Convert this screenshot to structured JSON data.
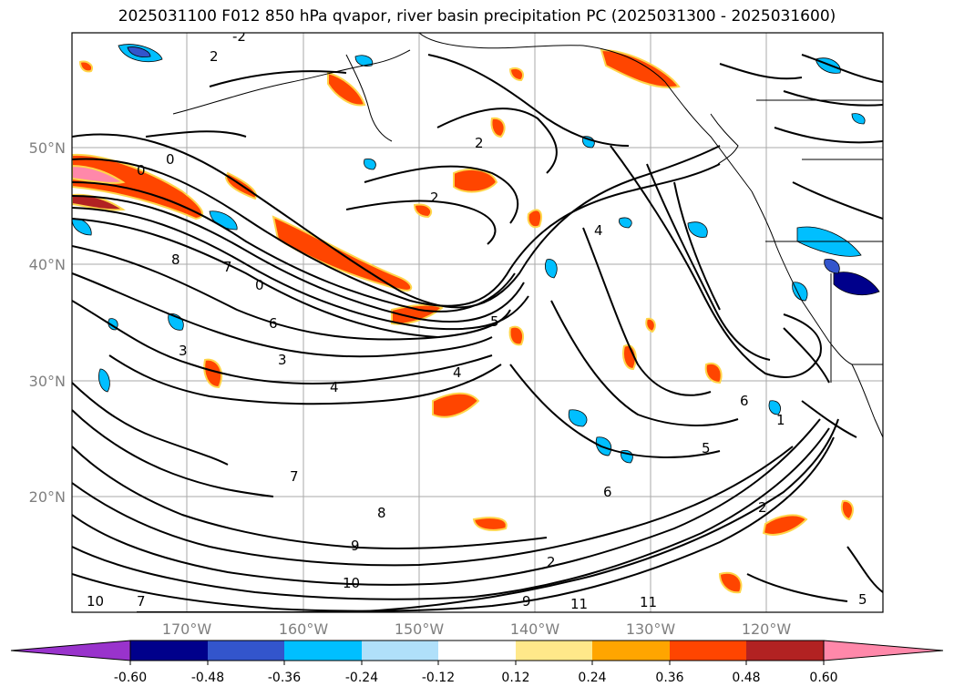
{
  "title": "2025031100 F012 850 hPa qvapor, river basin precipitation PC (2025031300 - 2025031600)",
  "map": {
    "lat_labels": [
      "50°N",
      "40°N",
      "30°N",
      "20°N"
    ],
    "lon_labels": [
      "170°W",
      "160°W",
      "150°W",
      "140°W",
      "130°W",
      "120°W"
    ],
    "contour_labels": [
      "0",
      "2",
      "0",
      "-2",
      "2",
      "4",
      "8",
      "7",
      "6",
      "5",
      "4",
      "3",
      "2",
      "1",
      "0",
      "5",
      "4",
      "3",
      "2",
      "6",
      "7",
      "8",
      "9",
      "10",
      "11",
      "11",
      "10",
      "9",
      "7",
      "5",
      "6",
      "2"
    ]
  },
  "colorbar": {
    "tick_labels": [
      "-0.60",
      "-0.48",
      "-0.36",
      "-0.24",
      "-0.12",
      "0.12",
      "0.24",
      "0.36",
      "0.48",
      "0.60"
    ],
    "colors": [
      "#9933cc",
      "#00008b",
      "#3355cc",
      "#00bfff",
      "#b0e0fa",
      "#ffffff",
      "#ffe88a",
      "#ffa500",
      "#ff4500",
      "#b22222",
      "#ff88aa"
    ]
  }
}
